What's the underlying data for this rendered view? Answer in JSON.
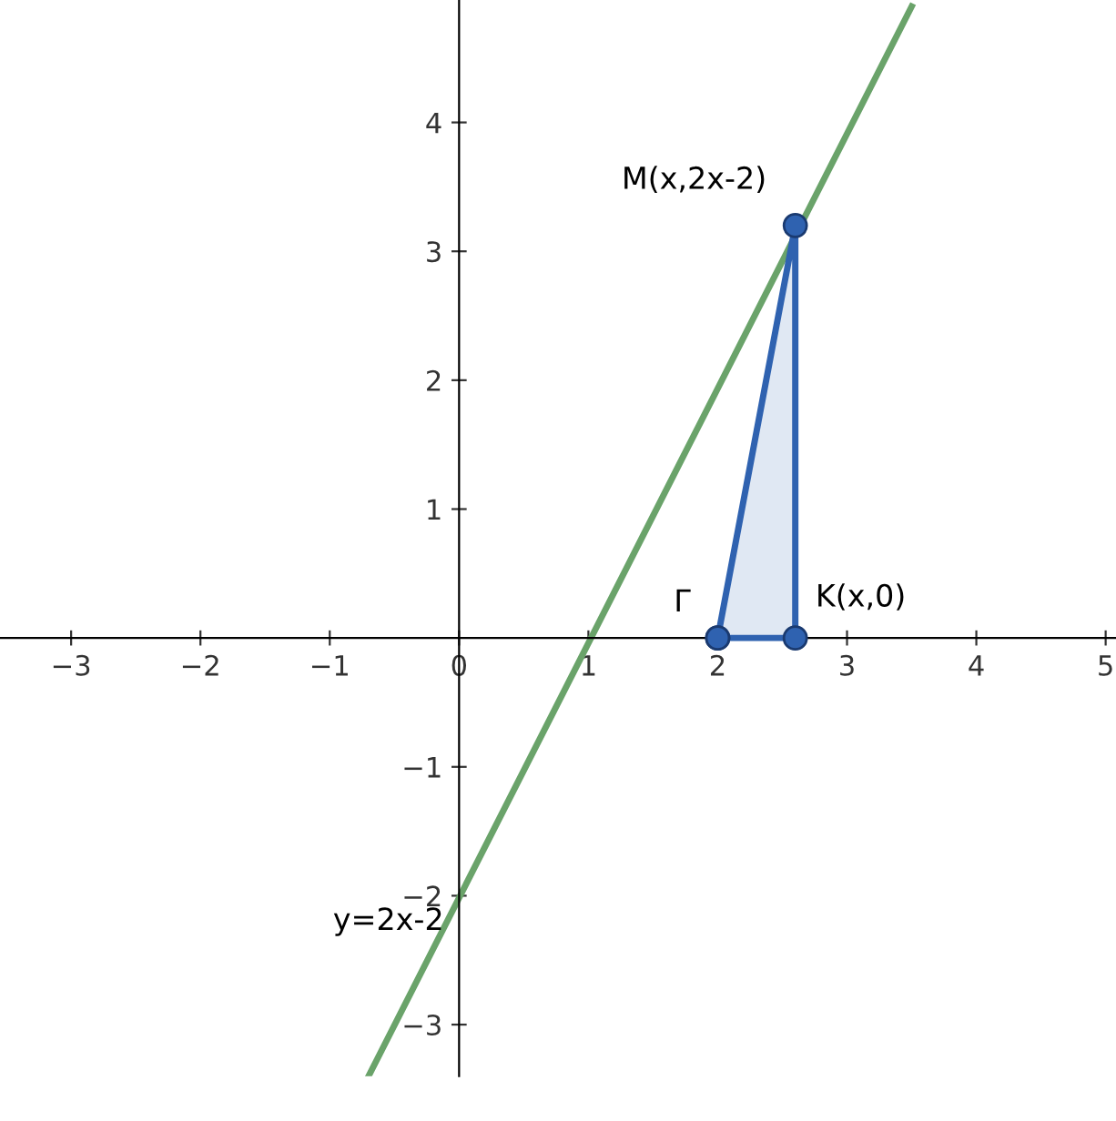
{
  "chart_data": {
    "type": "line",
    "series": [
      {
        "color": "#6aa36a",
        "x": [
          -0.7,
          3.5
        ],
        "values": [
          -3.4,
          4.9
        ],
        "marker": "none"
      },
      {
        "type": "area",
        "color": "#2f62b0",
        "x": [
          2,
          2.6,
          2.6,
          2
        ],
        "values": [
          0,
          3.2,
          0,
          0
        ],
        "marker": "circle"
      }
    ],
    "xlim": [
      -3.55,
      5.08
    ],
    "ylim": [
      -3.4,
      4.95
    ],
    "xticks": [
      -3,
      -2,
      -1,
      0,
      1,
      2,
      3,
      4,
      5
    ],
    "yticks": [
      -3,
      -2,
      -1,
      1,
      2,
      3,
      4
    ],
    "grid": false,
    "legend": false,
    "annotations": [
      {
        "text": "M(x,2x-2)",
        "x": 2.6,
        "y": 3.2
      },
      {
        "text": "Γ",
        "x": 2,
        "y": 0
      },
      {
        "text": "K(x,0)",
        "x": 2.6,
        "y": 0
      },
      {
        "text": "y=2x-2",
        "x": 0,
        "y": -2
      }
    ]
  }
}
